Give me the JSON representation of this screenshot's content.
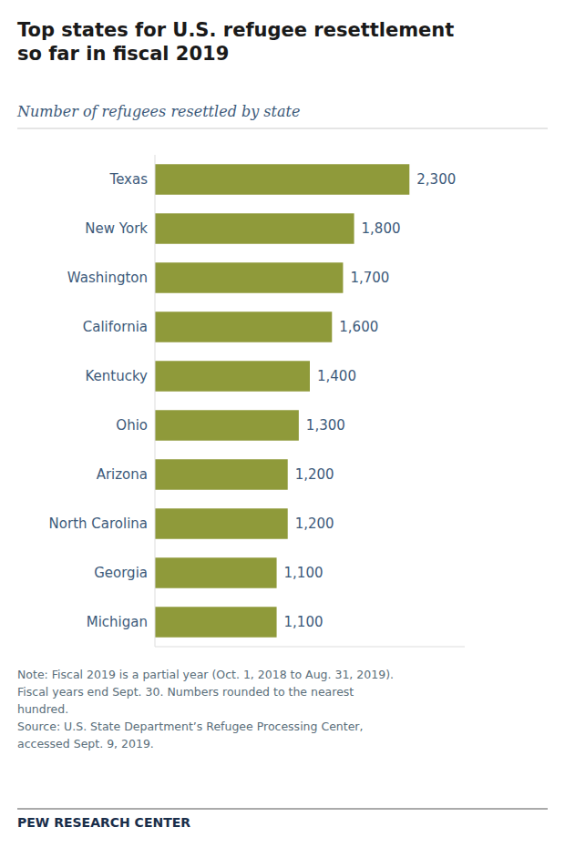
{
  "chart_data": {
    "type": "bar",
    "orientation": "horizontal",
    "title": "Top states for U.S. refugee resettlement\nso far in fiscal 2019",
    "subtitle": "Number of refugees resettled by state",
    "categories": [
      "Texas",
      "New York",
      "Washington",
      "California",
      "Kentucky",
      "Ohio",
      "Arizona",
      "North Carolina",
      "Georgia",
      "Michigan"
    ],
    "values": [
      2300,
      1800,
      1700,
      1600,
      1400,
      1300,
      1200,
      1200,
      1100,
      1100
    ],
    "value_labels": [
      "2,300",
      "1,800",
      "1,700",
      "1,600",
      "1,400",
      "1,300",
      "1,200",
      "1,200",
      "1,100",
      "1,100"
    ],
    "color": "#8f9a3a",
    "xlim": [
      0,
      2800
    ],
    "data_labels": true,
    "tick_labels": "y",
    "grid": false,
    "annotations": [
      "Note: Fiscal 2019 is a partial year (Oct. 1, 2018 to Aug. 31, 2019).",
      "Fiscal years end Sept. 30. Numbers rounded to the nearest",
      "hundred.",
      "Source: U.S. State Department’s Refugee Processing Center,",
      "accessed Sept. 9, 2019.",
      "PEW RESEARCH CENTER"
    ]
  }
}
